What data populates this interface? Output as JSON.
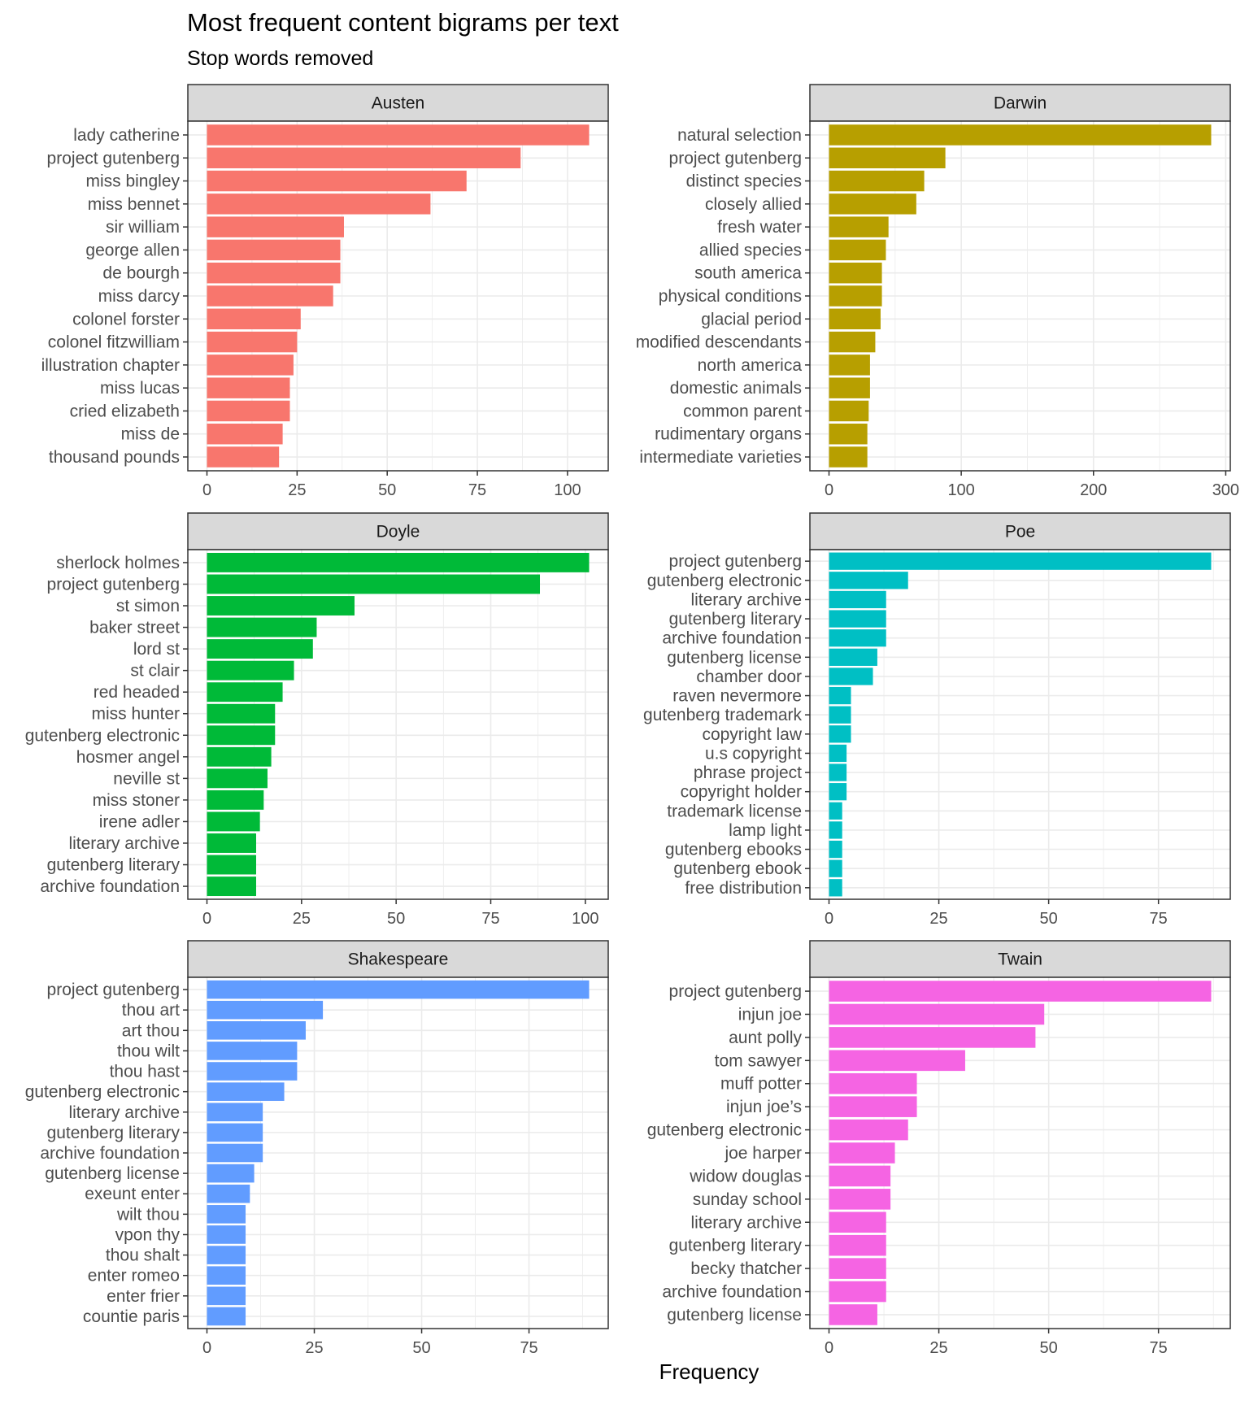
{
  "chart_data": {
    "type": "bar",
    "orientation": "horizontal",
    "title": "Most frequent content bigrams per text",
    "subtitle": "Stop words removed",
    "xlabel": "Frequency",
    "ylabel": "",
    "grid": true,
    "legend": "none",
    "facets": [
      {
        "name": "Austen",
        "color": "#F8766D",
        "ticks": [
          0,
          25,
          50,
          75,
          100
        ],
        "xlim": [
          0,
          106
        ],
        "categories": [
          "lady catherine",
          "project gutenberg",
          "miss bingley",
          "miss bennet",
          "sir william",
          "george allen",
          "de bourgh",
          "miss darcy",
          "colonel forster",
          "colonel fitzwilliam",
          "illustration chapter",
          "miss lucas",
          "cried elizabeth",
          "miss de",
          "thousand pounds"
        ],
        "values": [
          106,
          87,
          72,
          62,
          38,
          37,
          37,
          35,
          26,
          25,
          24,
          23,
          23,
          21,
          20
        ]
      },
      {
        "name": "Darwin",
        "color": "#B79F00",
        "ticks": [
          0,
          100,
          200,
          300
        ],
        "xlim": [
          0,
          289
        ],
        "categories": [
          "natural selection",
          "project gutenberg",
          "distinct species",
          "closely allied",
          "fresh water",
          "allied species",
          "south america",
          "physical conditions",
          "glacial period",
          "modified descendants",
          "north america",
          "domestic animals",
          "common parent",
          "rudimentary organs",
          "intermediate varieties"
        ],
        "values": [
          289,
          88,
          72,
          66,
          45,
          43,
          40,
          40,
          39,
          35,
          31,
          31,
          30,
          29,
          29
        ]
      },
      {
        "name": "Doyle",
        "color": "#00BA38",
        "ticks": [
          0,
          25,
          50,
          75,
          100
        ],
        "xlim": [
          0,
          101
        ],
        "categories": [
          "sherlock holmes",
          "project gutenberg",
          "st simon",
          "baker street",
          "lord st",
          "st clair",
          "red headed",
          "miss hunter",
          "gutenberg electronic",
          "hosmer angel",
          "neville st",
          "miss stoner",
          "irene adler",
          "literary archive",
          "gutenberg literary",
          "archive foundation"
        ],
        "values": [
          101,
          88,
          39,
          29,
          28,
          23,
          20,
          18,
          18,
          17,
          16,
          15,
          14,
          13,
          13,
          13
        ]
      },
      {
        "name": "Poe",
        "color": "#00BFC4",
        "ticks": [
          0,
          25,
          50,
          75
        ],
        "xlim": [
          0,
          87
        ],
        "categories": [
          "project gutenberg",
          "gutenberg electronic",
          "literary archive",
          "gutenberg literary",
          "archive foundation",
          "gutenberg license",
          "chamber door",
          "raven nevermore",
          "gutenberg trademark",
          "copyright law",
          "u.s copyright",
          "phrase project",
          "copyright holder",
          "trademark license",
          "lamp light",
          "gutenberg ebooks",
          "gutenberg ebook",
          "free distribution"
        ],
        "values": [
          87,
          18,
          13,
          13,
          13,
          11,
          10,
          5,
          5,
          5,
          4,
          4,
          4,
          3,
          3,
          3,
          3,
          3
        ]
      },
      {
        "name": "Shakespeare",
        "color": "#619CFF",
        "ticks": [
          0,
          25,
          50,
          75
        ],
        "xlim": [
          0,
          89
        ],
        "categories": [
          "project gutenberg",
          "thou art",
          "art thou",
          "thou wilt",
          "thou hast",
          "gutenberg electronic",
          "literary archive",
          "gutenberg literary",
          "archive foundation",
          "gutenberg license",
          "exeunt enter",
          "wilt thou",
          "vpon thy",
          "thou shalt",
          "enter romeo",
          "enter frier",
          "countie paris"
        ],
        "values": [
          89,
          27,
          23,
          21,
          21,
          18,
          13,
          13,
          13,
          11,
          10,
          9,
          9,
          9,
          9,
          9,
          9
        ]
      },
      {
        "name": "Twain",
        "color": "#F564E3",
        "ticks": [
          0,
          25,
          50,
          75
        ],
        "xlim": [
          0,
          87
        ],
        "categories": [
          "project gutenberg",
          "injun joe",
          "aunt polly",
          "tom sawyer",
          "muff potter",
          "injun joe’s",
          "gutenberg electronic",
          "joe harper",
          "widow douglas",
          "sunday school",
          "literary archive",
          "gutenberg literary",
          "becky thatcher",
          "archive foundation",
          "gutenberg license"
        ],
        "values": [
          87,
          49,
          47,
          31,
          20,
          20,
          18,
          15,
          14,
          14,
          13,
          13,
          13,
          13,
          11
        ]
      }
    ]
  }
}
